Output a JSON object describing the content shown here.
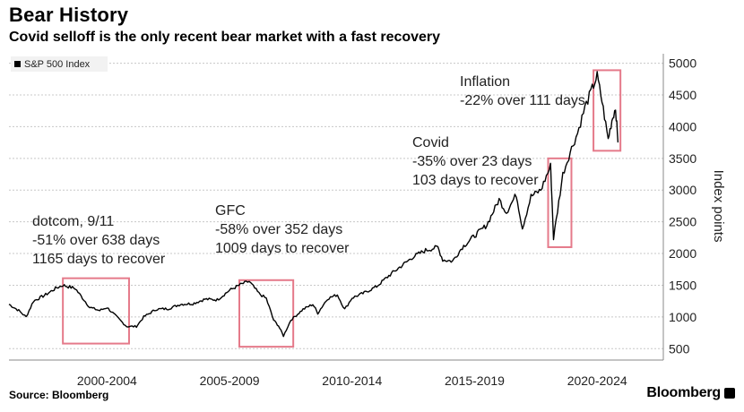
{
  "header": {
    "title": "Bear History",
    "subtitle": "Covid selloff is the only recent bear market with a fast recovery"
  },
  "footer": {
    "source": "Source: Bloomberg",
    "brand": "Bloomberg"
  },
  "colors": {
    "line": "#000000",
    "highlight_box": "#e57a8a",
    "grid": "#c8c8c8"
  },
  "chart_data": {
    "type": "line",
    "title": "",
    "ylabel": "Index points",
    "xlabel": "",
    "ylim": [
      320,
      5150
    ],
    "xlim": [
      1998.0,
      2024.7
    ],
    "y_ticks": [
      500,
      1000,
      1500,
      2000,
      2500,
      3000,
      3500,
      4000,
      4500,
      5000
    ],
    "x_tick_labels": [
      {
        "label": "2000-2004",
        "x": 2002.0
      },
      {
        "label": "2005-2009",
        "x": 2007.0
      },
      {
        "label": "2010-2014",
        "x": 2012.0
      },
      {
        "label": "2015-2019",
        "x": 2017.0
      },
      {
        "label": "2020-2024",
        "x": 2022.0
      }
    ],
    "grid": true,
    "legend_position": "top-left",
    "series": [
      {
        "name": "S&P 500 Index",
        "x": [
          1998.0,
          1998.4,
          1998.7,
          1999.0,
          1999.5,
          1999.9,
          2000.2,
          2000.7,
          2001.0,
          2001.3,
          2001.7,
          2002.0,
          2002.4,
          2002.8,
          2003.2,
          2003.5,
          2004.0,
          2004.5,
          2005.0,
          2005.5,
          2006.0,
          2006.5,
          2007.0,
          2007.5,
          2007.8,
          2008.2,
          2008.5,
          2008.8,
          2009.0,
          2009.2,
          2009.5,
          2010.0,
          2010.4,
          2010.6,
          2011.0,
          2011.4,
          2011.7,
          2012.0,
          2012.5,
          2013.0,
          2013.5,
          2014.0,
          2014.5,
          2015.0,
          2015.5,
          2015.7,
          2016.1,
          2016.5,
          2017.0,
          2017.5,
          2018.0,
          2018.3,
          2018.7,
          2018.95,
          2019.3,
          2019.7,
          2020.1,
          2020.22,
          2020.6,
          2020.9,
          2021.2,
          2021.5,
          2021.8,
          2022.0,
          2022.2,
          2022.45,
          2022.6,
          2022.75,
          2022.85
        ],
        "values": [
          1200,
          1100,
          1000,
          1250,
          1350,
          1450,
          1500,
          1450,
          1300,
          1150,
          1100,
          1150,
          1000,
          850,
          850,
          1000,
          1120,
          1130,
          1200,
          1210,
          1280,
          1270,
          1420,
          1520,
          1560,
          1370,
          1290,
          950,
          860,
          700,
          950,
          1120,
          1200,
          1060,
          1290,
          1350,
          1120,
          1300,
          1380,
          1480,
          1650,
          1800,
          1950,
          2050,
          2100,
          1900,
          1880,
          2100,
          2280,
          2450,
          2850,
          2650,
          2930,
          2400,
          2900,
          3000,
          3380,
          2240,
          3250,
          3600,
          3900,
          4300,
          4600,
          4800,
          4400,
          3800,
          4100,
          4300,
          3750
        ]
      }
    ],
    "annotations": [
      {
        "lines": [
          "dotcom, 9/11",
          "-51% over 638 days",
          "1165 days to recover"
        ],
        "box_x": [
          2000.2,
          2002.9
        ],
        "box_y": [
          580,
          1610
        ]
      },
      {
        "lines": [
          "GFC",
          "-58% over 352 days",
          "1009 days to recover"
        ],
        "box_x": [
          2007.4,
          2009.6
        ],
        "box_y": [
          530,
          1580
        ]
      },
      {
        "lines": [
          "Covid",
          "-35% over 23 days",
          "103 days to recover"
        ],
        "box_x": [
          2020.0,
          2020.95
        ],
        "box_y": [
          2100,
          3500
        ]
      },
      {
        "lines": [
          "Inflation",
          "-22% over 111 days"
        ],
        "box_x": [
          2021.85,
          2022.95
        ],
        "box_y": [
          3620,
          4890
        ]
      }
    ]
  }
}
